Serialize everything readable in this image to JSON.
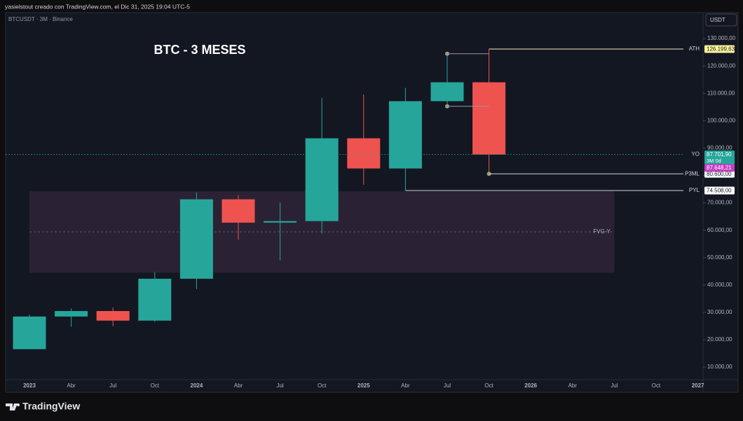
{
  "chart_data": {
    "type": "candlestick",
    "header": "yasielstout creado con TradingView.com, el Dic 31, 2025 19:04 UTC-5",
    "symbol": "BTCUSDT · 3M · Binance",
    "title": "BTC - 3 MESES",
    "currency": "USDT",
    "brand": "TradingView",
    "categories": [
      "2023",
      "Abr",
      "Jul",
      "Oct",
      "2024",
      "Abr",
      "Jul",
      "Oct",
      "2025",
      "Abr",
      "Jul",
      "Oct",
      "2026",
      "Abr",
      "Jul",
      "Oct",
      "2027"
    ],
    "open": [
      16540,
      28470,
      30470,
      26970,
      42280,
      71290,
      62770,
      63330,
      93580,
      82550,
      107140,
      114050,
      null,
      null,
      null,
      null,
      null
    ],
    "high": [
      29190,
      31430,
      31800,
      44700,
      73780,
      72800,
      70080,
      108350,
      109590,
      111980,
      124470,
      126199.63,
      null,
      null,
      null,
      null,
      null
    ],
    "low": [
      16490,
      24750,
      24900,
      26550,
      38550,
      56550,
      49000,
      58870,
      76600,
      74508,
      105280,
      80600,
      null,
      null,
      null,
      null,
      null
    ],
    "close": [
      28470,
      30470,
      26970,
      42280,
      71290,
      62770,
      63330,
      93580,
      82550,
      107140,
      114050,
      87648.21,
      null,
      null,
      null,
      null,
      null
    ],
    "close_labels": [
      null,
      null,
      null,
      null,
      null,
      null,
      null,
      null,
      null,
      null,
      null,
      "87.648,21",
      null,
      null,
      null,
      null,
      null
    ],
    "up_color": "#26a69a",
    "down_color": "#ef5350",
    "close_label_color": "#c23fc2",
    "ylim": [
      5400,
      139500
    ],
    "yticks": [
      {
        "value": 10000,
        "label": "10.000,00"
      },
      {
        "value": 20000,
        "label": "20.000,00"
      },
      {
        "value": 30000,
        "label": "30.000,00"
      },
      {
        "value": 40000,
        "label": "40.000,00"
      },
      {
        "value": 50000,
        "label": "50.000,00"
      },
      {
        "value": 60000,
        "label": "60.000,00"
      },
      {
        "value": 70000,
        "label": "70.000,00"
      },
      {
        "value": 80000,
        "label": "80.000,00"
      },
      {
        "value": 90000,
        "label": "90.000,00"
      },
      {
        "value": 100000,
        "label": "100.000,00"
      },
      {
        "value": 110000,
        "label": "110.000,00"
      },
      {
        "value": 120000,
        "label": "120.000,00"
      },
      {
        "value": 130000,
        "label": "130.000,00"
      }
    ],
    "grid": false,
    "zone": {
      "name": "FVG-Y",
      "top": 74200,
      "bottom": 44500,
      "mid": 59400,
      "color": "#2a2234"
    },
    "levels": [
      {
        "name": "ATH",
        "value": 126199.63,
        "value_label": "126.199,63",
        "color": "#fff59d",
        "text_color": "#131722"
      },
      {
        "name": "YO",
        "value": 87701.9,
        "value_label": "87.701,90",
        "countdown": "3M 0d",
        "color": "#26a69a",
        "text_color": "#ffffff"
      },
      {
        "name": "P3ML",
        "value": 80600,
        "value_label": "80.600,00",
        "color": "#ffffff",
        "text_color": "#131722"
      },
      {
        "name": "PYL",
        "value": 74508,
        "value_label": "74.508,00",
        "color": "#ffffff",
        "text_color": "#131722"
      }
    ]
  }
}
